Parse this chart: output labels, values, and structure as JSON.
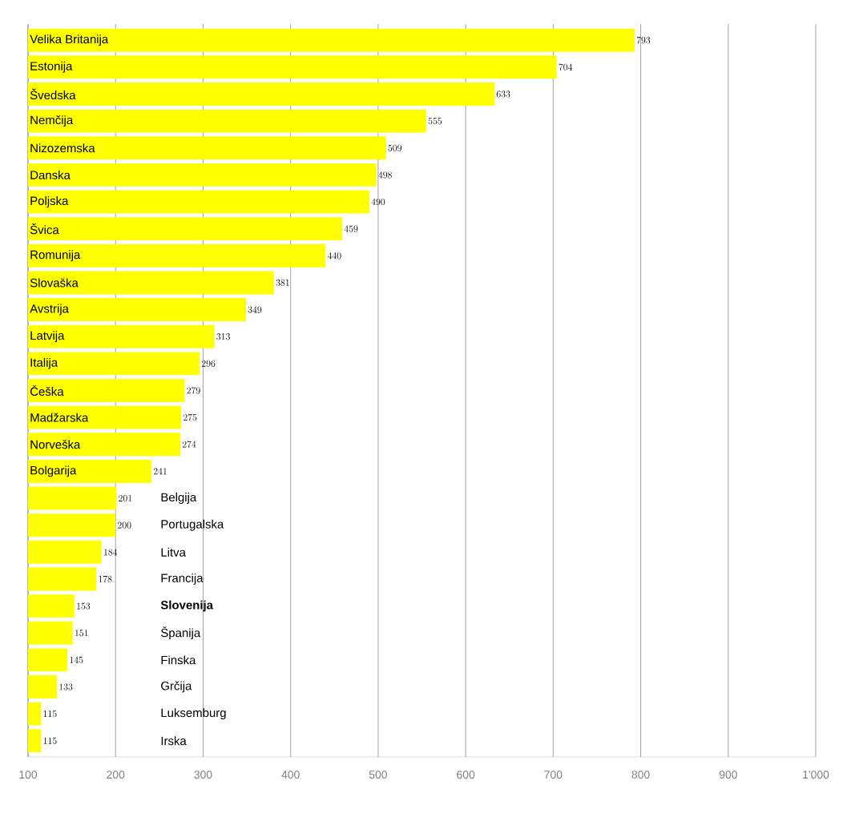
{
  "chart_data": {
    "type": "bar",
    "orientation": "horizontal",
    "categories": [
      "Velika Britanija",
      "Estonija",
      "Švedska",
      "Nemčija",
      "Nizozemska",
      "Danska",
      "Poljska",
      "Švica",
      "Romunija",
      "Slovaška",
      "Avstrija",
      "Latvija",
      "Italija",
      "Češka",
      "Madžarska",
      "Norveška",
      "Bolgarija",
      "Belgija",
      "Portugalska",
      "Litva",
      "Francija",
      "**Slovenija**",
      "Španija",
      "Finska",
      "Grčija",
      "Luksemburg",
      "Irska"
    ],
    "values": [
      793,
      704,
      633,
      555,
      509,
      498,
      490,
      459,
      440,
      381,
      349,
      313,
      296,
      279,
      275,
      274,
      241,
      201,
      200,
      184,
      178,
      153,
      151,
      145,
      133,
      115,
      115
    ],
    "color": "#ffff00",
    "xlim": [
      100,
      1000
    ],
    "xticks": [
      100,
      200,
      300,
      400,
      500,
      600,
      700,
      800,
      900,
      {
        "value": 1000,
        "label": "1'000"
      }
    ],
    "grid": "x",
    "data_labels": true
  }
}
